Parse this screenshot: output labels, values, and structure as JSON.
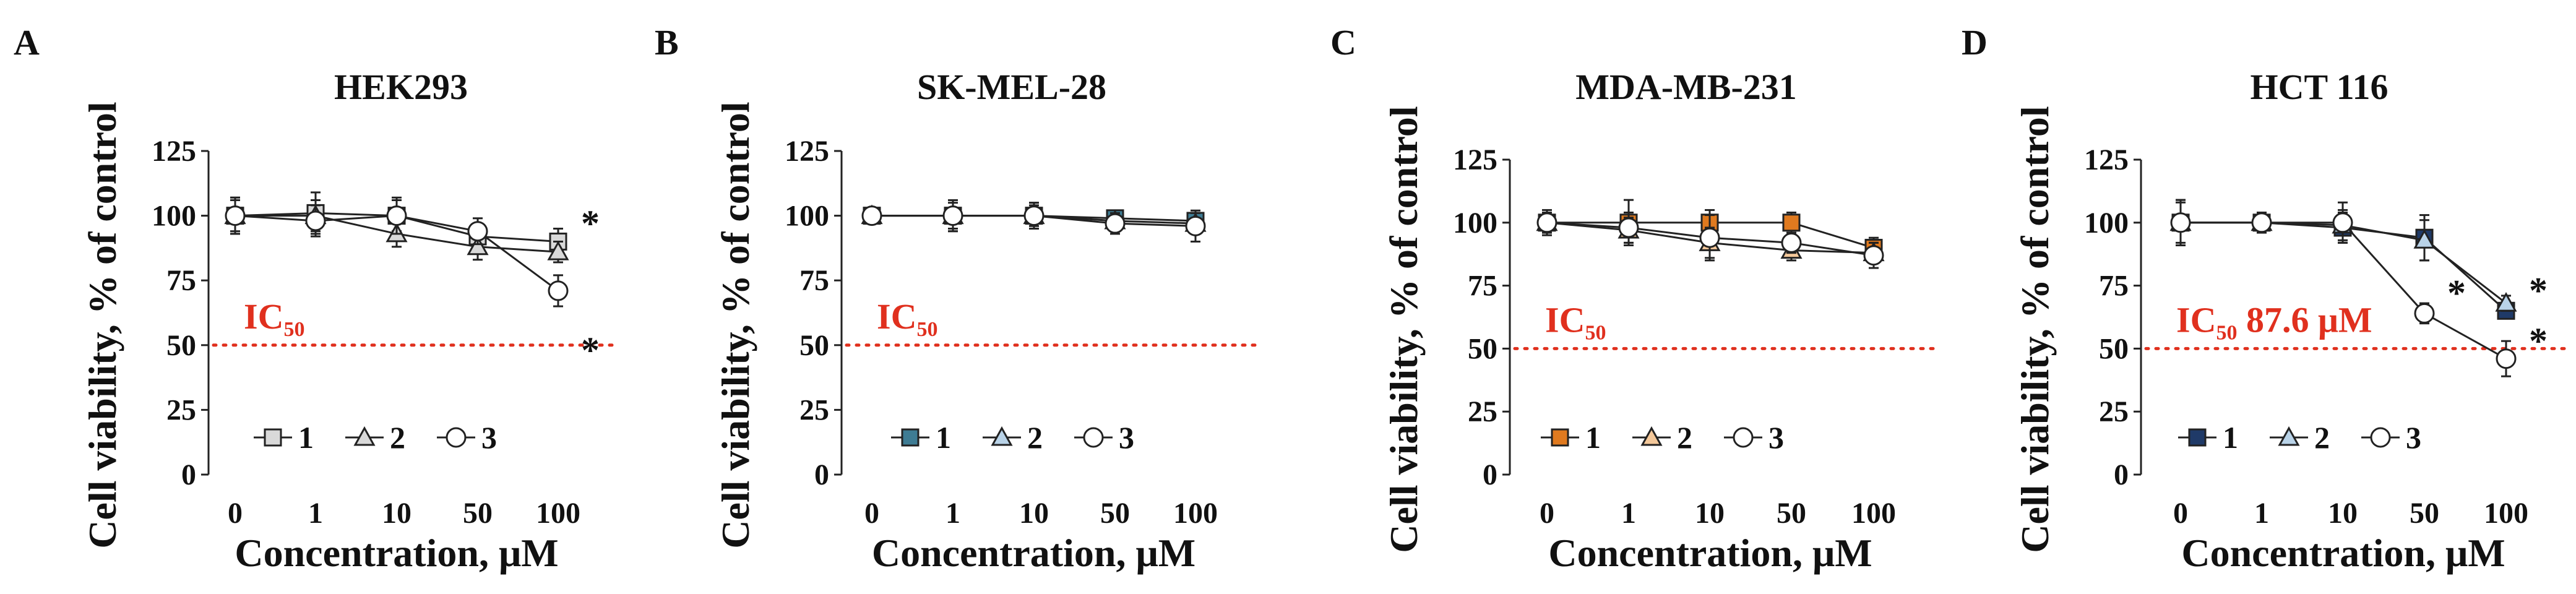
{
  "figure": {
    "colors": {
      "accent_red": "#E0301E",
      "line": "#222222",
      "blue_dark": "#1F3A68",
      "teal": "#3E7C94",
      "light_blue": "#B9D3E8",
      "orange": "#E07A1F",
      "peach": "#F4C89A",
      "grey": "#D9D9D9",
      "white": "#FFFFFF"
    }
  },
  "chart_data": [
    {
      "panel": "A",
      "type": "line",
      "title": "HEK293",
      "xlabel": "Concentration, μM",
      "ylabel": "Cell viability, % of control",
      "categories": [
        "0",
        "1",
        "10",
        "50",
        "100"
      ],
      "ylim": [
        0,
        125
      ],
      "yticks": [
        "0",
        "25",
        "50",
        "75",
        "100",
        "125"
      ],
      "ic50": {
        "value": 50,
        "label": "IC",
        "subscript": "50",
        "suffix": ""
      },
      "series": [
        {
          "name": "1",
          "marker": "square",
          "fill": "#D9D9D9",
          "values": [
            100,
            101,
            100,
            92,
            90
          ],
          "errors": [
            7,
            8,
            6,
            5,
            5
          ]
        },
        {
          "name": "2",
          "marker": "triangle",
          "fill": "#D9D9D9",
          "values": [
            100,
            100,
            93,
            88,
            86
          ],
          "errors": [
            6,
            6,
            5,
            5,
            4
          ]
        },
        {
          "name": "3",
          "marker": "circle",
          "fill": "#FFFFFF",
          "values": [
            100,
            98,
            100,
            94,
            71
          ],
          "errors": [
            7,
            6,
            7,
            5,
            6
          ]
        }
      ],
      "annotations": [
        {
          "text": "*",
          "x": "100",
          "y": 99
        },
        {
          "text": "*",
          "x": "100",
          "y": 50
        }
      ]
    },
    {
      "panel": "B",
      "type": "line",
      "title": "SK-MEL-28",
      "xlabel": "Concentration, μM",
      "ylabel": "Cell viability, % of control",
      "categories": [
        "0",
        "1",
        "10",
        "50",
        "100"
      ],
      "ylim": [
        0,
        125
      ],
      "yticks": [
        "0",
        "25",
        "50",
        "75",
        "100",
        "125"
      ],
      "ic50": {
        "value": 50,
        "label": "IC",
        "subscript": "50",
        "suffix": ""
      },
      "series": [
        {
          "name": "1",
          "marker": "square",
          "fill": "#3E7C94",
          "values": [
            100,
            100,
            100,
            99,
            98
          ],
          "errors": [
            2,
            6,
            5,
            3,
            3
          ]
        },
        {
          "name": "2",
          "marker": "triangle",
          "fill": "#B9D3E8",
          "values": [
            100,
            100,
            100,
            98,
            97
          ],
          "errors": [
            2,
            5,
            5,
            3,
            4
          ]
        },
        {
          "name": "3",
          "marker": "circle",
          "fill": "#FFFFFF",
          "values": [
            100,
            100,
            100,
            97,
            96
          ],
          "errors": [
            2,
            6,
            4,
            4,
            6
          ]
        }
      ],
      "annotations": []
    },
    {
      "panel": "C",
      "type": "line",
      "title": "MDA-MB-231",
      "xlabel": "Concentration, μM",
      "ylabel": "Cell viability, % of control",
      "categories": [
        "0",
        "1",
        "10",
        "50",
        "100"
      ],
      "ylim": [
        0,
        125
      ],
      "yticks": [
        "0",
        "25",
        "50",
        "75",
        "100",
        "125"
      ],
      "ic50": {
        "value": 50,
        "label": "IC",
        "subscript": "50",
        "suffix": ""
      },
      "series": [
        {
          "name": "1",
          "marker": "square",
          "fill": "#E07A1F",
          "values": [
            100,
            100,
            100,
            100,
            90
          ],
          "errors": [
            4,
            9,
            5,
            4,
            4
          ]
        },
        {
          "name": "2",
          "marker": "triangle",
          "fill": "#F4C89A",
          "values": [
            100,
            97,
            92,
            89,
            88
          ],
          "errors": [
            4,
            5,
            6,
            4,
            4
          ]
        },
        {
          "name": "3",
          "marker": "circle",
          "fill": "#FFFFFF",
          "values": [
            100,
            98,
            94,
            92,
            87
          ],
          "errors": [
            5,
            6,
            9,
            4,
            5
          ]
        }
      ],
      "annotations": []
    },
    {
      "panel": "D",
      "type": "line",
      "title": "HCT 116",
      "xlabel": "Concentration, μM",
      "ylabel": "Cell viability, % of control",
      "categories": [
        "0",
        "1",
        "10",
        "50",
        "100"
      ],
      "ylim": [
        0,
        125
      ],
      "yticks": [
        "0",
        "25",
        "50",
        "75",
        "100",
        "125"
      ],
      "ic50": {
        "value": 50,
        "label": "IC",
        "subscript": "50",
        "suffix": " 87.6 μM"
      },
      "series": [
        {
          "name": "1",
          "marker": "square",
          "fill": "#1F3A68",
          "values": [
            100,
            100,
            98,
            94,
            65
          ],
          "errors": [
            9,
            3,
            6,
            9,
            3
          ]
        },
        {
          "name": "2",
          "marker": "triangle",
          "fill": "#B9D3E8",
          "values": [
            100,
            100,
            99,
            93,
            68
          ],
          "errors": [
            8,
            3,
            6,
            8,
            3
          ]
        },
        {
          "name": "3",
          "marker": "circle",
          "fill": "#FFFFFF",
          "values": [
            100,
            100,
            100,
            64,
            46
          ],
          "errors": [
            9,
            4,
            8,
            4,
            7
          ]
        }
      ],
      "annotations": [
        {
          "text": "*",
          "x": "50",
          "y": 74
        },
        {
          "text": "*",
          "x": "100",
          "y": 75
        },
        {
          "text": "*",
          "x": "100",
          "y": 55
        }
      ]
    }
  ]
}
